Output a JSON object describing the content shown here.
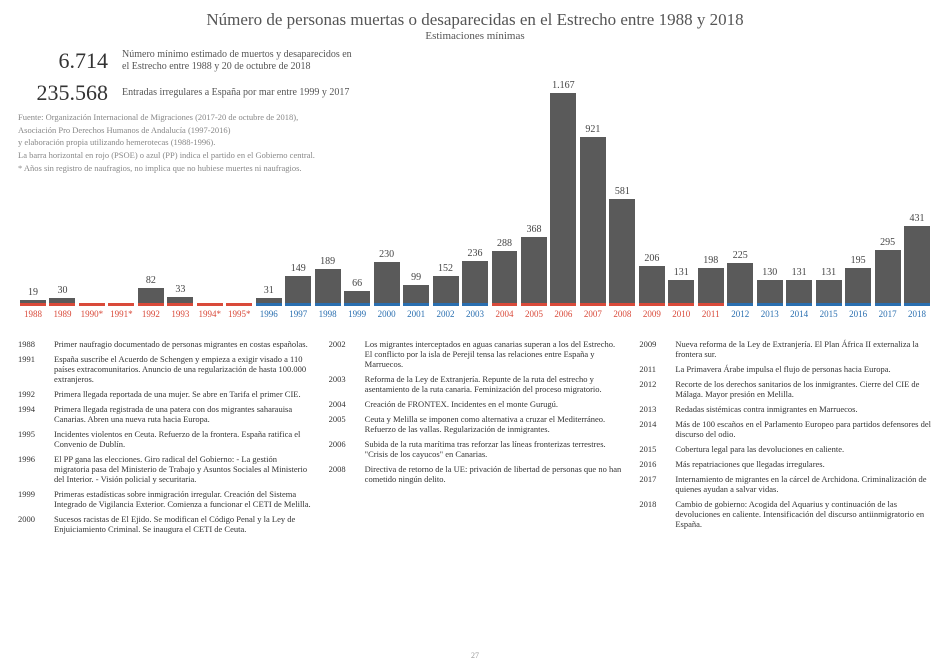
{
  "title": "Número de personas muertas o desaparecidas en el Estrecho entre 1988 y 2018",
  "subtitle": "Estimaciones mínimas",
  "big1_num": "6.714",
  "big1_label": "Número mínimo estimado de muertos y desaparecidos en el Estrecho entre 1988 y 20 de octubre de 2018",
  "big2_num": "235.568",
  "big2_label": "Entradas irregulares a España por mar entre 1999 y 2017",
  "source1": "Fuente: Organización Internacional de Migraciones (2017-20 de octubre de 2018),",
  "source2": "Asociación Pro Derechos Humanos de Andalucía (1997-2016)",
  "source3": "y elaboración propia utilizando hemerotecas (1988-1996).",
  "source4": "La barra horizontal en rojo (PSOE) o azul (PP) indica el partido en el Gobierno central.",
  "source5": "* Años sin registro de naufragios, no implica que no hubiese muertes ni naufragios.",
  "pagenum": "27",
  "chart": {
    "type": "bar",
    "bar_color": "#5a5a5a",
    "psoe_color": "#d94a3a",
    "pp_color": "#2a6fb0",
    "text_color": "#444",
    "background": "#ffffff",
    "max_value": 1167,
    "bars": [
      {
        "year": "1988",
        "value": 19,
        "gov": "psoe",
        "label": "19"
      },
      {
        "year": "1989",
        "value": 30,
        "gov": "psoe",
        "label": "30"
      },
      {
        "year": "1990*",
        "value": 0,
        "gov": "psoe",
        "label": ""
      },
      {
        "year": "1991*",
        "value": 0,
        "gov": "psoe",
        "label": ""
      },
      {
        "year": "1992",
        "value": 82,
        "gov": "psoe",
        "label": "82"
      },
      {
        "year": "1993",
        "value": 33,
        "gov": "psoe",
        "label": "33"
      },
      {
        "year": "1994*",
        "value": 0,
        "gov": "psoe",
        "label": ""
      },
      {
        "year": "1995*",
        "value": 0,
        "gov": "psoe",
        "label": ""
      },
      {
        "year": "1996",
        "value": 31,
        "gov": "pp",
        "label": "31"
      },
      {
        "year": "1997",
        "value": 149,
        "gov": "pp",
        "label": "149"
      },
      {
        "year": "1998",
        "value": 189,
        "gov": "pp",
        "label": "189"
      },
      {
        "year": "1999",
        "value": 66,
        "gov": "pp",
        "label": "66"
      },
      {
        "year": "2000",
        "value": 230,
        "gov": "pp",
        "label": "230"
      },
      {
        "year": "2001",
        "value": 99,
        "gov": "pp",
        "label": "99"
      },
      {
        "year": "2002",
        "value": 152,
        "gov": "pp",
        "label": "152"
      },
      {
        "year": "2003",
        "value": 236,
        "gov": "pp",
        "label": "236"
      },
      {
        "year": "2004",
        "value": 288,
        "gov": "psoe",
        "label": "288"
      },
      {
        "year": "2005",
        "value": 368,
        "gov": "psoe",
        "label": "368"
      },
      {
        "year": "2006",
        "value": 1167,
        "gov": "psoe",
        "label": "1.167"
      },
      {
        "year": "2007",
        "value": 921,
        "gov": "psoe",
        "label": "921"
      },
      {
        "year": "2008",
        "value": 581,
        "gov": "psoe",
        "label": "581"
      },
      {
        "year": "2009",
        "value": 206,
        "gov": "psoe",
        "label": "206"
      },
      {
        "year": "2010",
        "value": 131,
        "gov": "psoe",
        "label": "131"
      },
      {
        "year": "2011",
        "value": 198,
        "gov": "psoe",
        "label": "198"
      },
      {
        "year": "2012",
        "value": 225,
        "gov": "pp",
        "label": "225"
      },
      {
        "year": "2013",
        "value": 130,
        "gov": "pp",
        "label": "130"
      },
      {
        "year": "2014",
        "value": 131,
        "gov": "pp",
        "label": "131"
      },
      {
        "year": "2015",
        "value": 131,
        "gov": "pp",
        "label": "131"
      },
      {
        "year": "2016",
        "value": 195,
        "gov": "pp",
        "label": "195"
      },
      {
        "year": "2017",
        "value": 295,
        "gov": "pp",
        "label": "295"
      },
      {
        "year": "2018",
        "value": 431,
        "gov": "pp",
        "label": "431"
      }
    ]
  },
  "timeline": {
    "col1": [
      {
        "y": "1988",
        "t": "Primer naufragio documentado de personas migrantes en costas españolas."
      },
      {
        "y": "1991",
        "t": "España suscribe el Acuerdo de Schengen y empieza a exigir visado a 110 países extracomunitarios. Anuncio de una regularización de hasta 100.000 extranjeros."
      },
      {
        "y": "1992",
        "t": "Primera llegada reportada de una mujer. Se abre en Tarifa el primer CIE."
      },
      {
        "y": "1994",
        "t": "Primera llegada registrada de una patera con dos migrantes saharauisa Canarias. Abren una nueva ruta hacia Europa."
      },
      {
        "y": "1995",
        "t": "Incidentes violentos en Ceuta. Refuerzo de la frontera. España ratifica el Convenio de Dublín."
      },
      {
        "y": "1996",
        "t": "El PP gana las elecciones. Giro radical del Gobierno: - La gestión migratoria pasa del Ministerio de Trabajo y Asuntos Sociales al Ministerio del Interior. - Visión policial y securitaria."
      },
      {
        "y": "1999",
        "t": "Primeras estadísticas sobre inmigración irregular. Creación del Sistema Integrado de Vigilancia Exterior. Comienza a funcionar el CETI de Melilla."
      },
      {
        "y": "2000",
        "t": "Sucesos racistas de El Ejido. Se modifican el Código Penal y la Ley de Enjuiciamiento Criminal. Se inaugura el CETI de Ceuta."
      }
    ],
    "col2": [
      {
        "y": "2002",
        "t": "Los migrantes interceptados en aguas canarias superan a los del Estrecho. El conflicto por la isla de Perejil tensa las relaciones entre España y Marruecos."
      },
      {
        "y": "2003",
        "t": "Reforma de la Ley de Extranjería. Repunte de la ruta del estrecho y asentamiento de la ruta canaria. Feminización del proceso migratorio."
      },
      {
        "y": "2004",
        "t": "Creación de FRONTEX. Incidentes en el monte Gurugú."
      },
      {
        "y": "2005",
        "t": "Ceuta y Melilla se imponen como alternativa a cruzar el Mediterráneo. Refuerzo de las vallas. Regularización de inmigrantes."
      },
      {
        "y": "2006",
        "t": "Subida de la ruta marítima tras reforzar las líneas fronterizas terrestres. \"Crisis de los cayucos\" en Canarias."
      },
      {
        "y": "2008",
        "t": "Directiva de retorno de la UE: privación de libertad de personas que no han cometido ningún delito."
      }
    ],
    "col3": [
      {
        "y": "2009",
        "t": "Nueva reforma de la Ley de Extranjería. El Plan África II externaliza la frontera sur."
      },
      {
        "y": "2011",
        "t": "La Primavera Árabe impulsa el flujo de personas hacia Europa."
      },
      {
        "y": "2012",
        "t": "Recorte de los derechos sanitarios de los inmigrantes. Cierre del CIE de Málaga. Mayor presión en Melilla."
      },
      {
        "y": "2013",
        "t": "Redadas sistémicas contra inmigrantes en Marruecos."
      },
      {
        "y": "2014",
        "t": "Más de 100 escaños en el Parlamento Europeo para partidos defensores del discurso del odio."
      },
      {
        "y": "2015",
        "t": "Cobertura legal para las devoluciones en caliente."
      },
      {
        "y": "2016",
        "t": "Más repatriaciones que llegadas irregulares."
      },
      {
        "y": "2017",
        "t": "Internamiento de migrantes en la cárcel de Archidona. Criminalización de quienes ayudan a salvar vidas."
      },
      {
        "y": "2018",
        "t": "Cambio de gobierno: Acogida del Aquarius y continuación de las devoluciones en caliente. Intensificación del discurso antiinmigratorio en España."
      }
    ]
  }
}
